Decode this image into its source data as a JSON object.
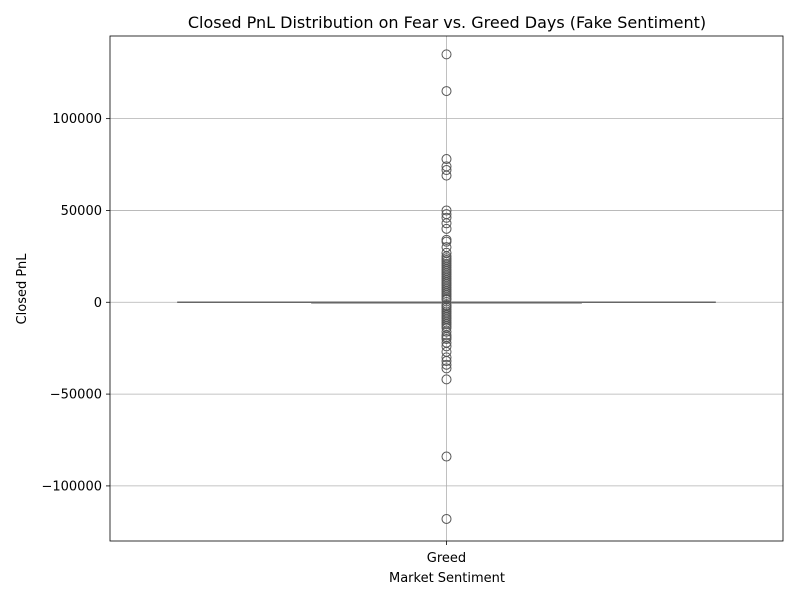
{
  "chart_data": {
    "type": "box",
    "title": "Closed PnL Distribution on Fear vs. Greed Days (Fake Sentiment)",
    "xlabel": "Market Sentiment",
    "ylabel": "Closed PnL",
    "categories": [
      "Greed"
    ],
    "ylim": [
      -130000,
      145000
    ],
    "yticks": [
      -100000,
      -50000,
      0,
      50000,
      100000
    ],
    "ytick_labels": [
      "−100000",
      "−50000",
      "0",
      "50000",
      "100000"
    ],
    "grid": true,
    "box": {
      "category": "Greed",
      "q1": 0,
      "median": 0,
      "q3": 0,
      "whisker_low": 0,
      "whisker_high": 0
    },
    "outliers": [
      135000,
      115000,
      78000,
      74000,
      72000,
      69000,
      50000,
      48000,
      46000,
      43000,
      40000,
      34000,
      33000,
      30000,
      27000,
      25000,
      24000,
      23000,
      22000,
      21000,
      20000,
      19000,
      18000,
      17000,
      16000,
      15000,
      14000,
      13000,
      12000,
      11000,
      10000,
      9000,
      8000,
      7000,
      6000,
      5000,
      4000,
      3000,
      2000,
      1500,
      -1500,
      -2000,
      -3000,
      -4000,
      -5000,
      -6000,
      -7000,
      -8000,
      -9000,
      -10000,
      -11000,
      -12000,
      -13000,
      -14000,
      -16000,
      -18000,
      -19000,
      -20000,
      -22000,
      -24000,
      -27000,
      -30000,
      -32000,
      -34000,
      -36000,
      -42000,
      -84000,
      -118000
    ],
    "colors": {
      "box": "#666666",
      "grid": "#b0b0b0",
      "marker_edge": "#555555"
    }
  }
}
